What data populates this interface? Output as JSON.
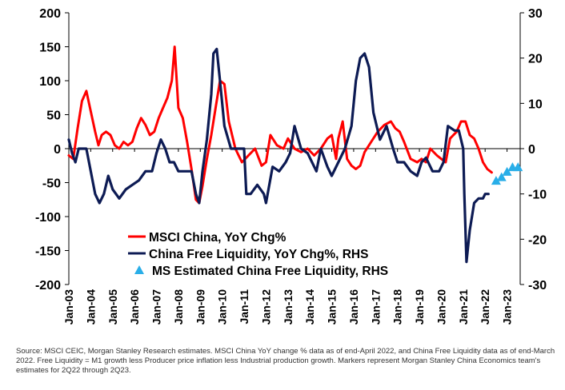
{
  "chart_data": {
    "type": "line",
    "title": "",
    "xlabel": "",
    "ylabel": "",
    "y_left": {
      "range": [
        -200,
        200
      ],
      "ticks": [
        "200",
        "150",
        "100",
        "50",
        "0",
        "-50",
        "-100",
        "-150",
        "-200"
      ]
    },
    "y_right": {
      "range": [
        -30,
        30
      ],
      "ticks": [
        "30",
        "20",
        "10",
        "0",
        "-10",
        "-20",
        "-30"
      ]
    },
    "x_range": [
      2003.0,
      2023.6
    ],
    "x_ticks": [
      "Jan-03",
      "Jan-04",
      "Jan-05",
      "Jan-06",
      "Jan-07",
      "Jan-08",
      "Jan-09",
      "Jan-10",
      "Jan-11",
      "Jan-12",
      "Jan-13",
      "Jan-14",
      "Jan-15",
      "Jan-16",
      "Jan-17",
      "Jan-18",
      "Jan-19",
      "Jan-20",
      "Jan-21",
      "Jan-22",
      "Jan-23"
    ],
    "x_tick_years": [
      2003,
      2004,
      2005,
      2006,
      2007,
      2008,
      2009,
      2010,
      2011,
      2012,
      2013,
      2014,
      2015,
      2016,
      2017,
      2018,
      2019,
      2020,
      2021,
      2022,
      2023
    ],
    "legend_position": "lower-center",
    "series": [
      {
        "name": "MSCI China, YoY Chg%",
        "axis": "left",
        "color": "#ff0000",
        "style": "line",
        "x": [
          2003.0,
          2003.2,
          2003.4,
          2003.6,
          2003.8,
          2004.0,
          2004.2,
          2004.35,
          2004.5,
          2004.7,
          2004.9,
          2005.1,
          2005.3,
          2005.5,
          2005.7,
          2005.9,
          2006.1,
          2006.3,
          2006.5,
          2006.7,
          2006.9,
          2007.1,
          2007.3,
          2007.5,
          2007.7,
          2007.83,
          2008.0,
          2008.2,
          2008.4,
          2008.6,
          2008.8,
          2008.95,
          2009.1,
          2009.3,
          2009.5,
          2009.7,
          2009.9,
          2010.1,
          2010.3,
          2010.6,
          2010.9,
          2011.2,
          2011.5,
          2011.8,
          2012.0,
          2012.2,
          2012.5,
          2012.8,
          2013.0,
          2013.3,
          2013.6,
          2013.9,
          2014.2,
          2014.5,
          2014.8,
          2015.0,
          2015.2,
          2015.3,
          2015.5,
          2015.7,
          2015.9,
          2016.1,
          2016.3,
          2016.5,
          2016.8,
          2017.1,
          2017.4,
          2017.7,
          2017.9,
          2018.1,
          2018.3,
          2018.6,
          2018.9,
          2019.1,
          2019.3,
          2019.5,
          2019.8,
          2020.0,
          2020.2,
          2020.4,
          2020.7,
          2020.9,
          2021.1,
          2021.3,
          2021.5,
          2021.7,
          2021.9,
          2022.1,
          2022.3
        ],
        "values": [
          -10,
          -15,
          30,
          70,
          85,
          55,
          25,
          5,
          20,
          25,
          20,
          5,
          0,
          10,
          5,
          10,
          30,
          45,
          35,
          20,
          25,
          45,
          60,
          75,
          100,
          150,
          60,
          45,
          10,
          -30,
          -75,
          -80,
          -55,
          -15,
          20,
          60,
          100,
          95,
          40,
          0,
          -20,
          -10,
          0,
          -25,
          -20,
          20,
          5,
          0,
          15,
          0,
          -5,
          0,
          -10,
          0,
          15,
          20,
          -15,
          15,
          40,
          -15,
          -25,
          -30,
          -25,
          -5,
          10,
          25,
          35,
          40,
          30,
          25,
          10,
          -15,
          -20,
          -15,
          -20,
          0,
          -10,
          -15,
          -20,
          15,
          25,
          40,
          40,
          20,
          15,
          0,
          -20,
          -30,
          -35
        ]
      },
      {
        "name": "China Free Liquidity, YoY Chg%, RHS",
        "axis": "right",
        "color": "#0d1b54",
        "style": "line",
        "x": [
          2003.0,
          2003.15,
          2003.3,
          2003.45,
          2003.6,
          2003.8,
          2004.0,
          2004.2,
          2004.4,
          2004.6,
          2004.8,
          2005.0,
          2005.3,
          2005.6,
          2005.9,
          2006.2,
          2006.5,
          2006.8,
          2007.0,
          2007.2,
          2007.4,
          2007.6,
          2007.8,
          2008.0,
          2008.3,
          2008.6,
          2008.8,
          2008.95,
          2009.1,
          2009.3,
          2009.5,
          2009.6,
          2009.75,
          2009.9,
          2010.1,
          2010.4,
          2010.7,
          2011.0,
          2011.1,
          2011.3,
          2011.6,
          2011.9,
          2012.0,
          2012.3,
          2012.6,
          2012.9,
          2013.1,
          2013.3,
          2013.6,
          2013.9,
          2014.1,
          2014.3,
          2014.5,
          2014.8,
          2015.0,
          2015.3,
          2015.6,
          2015.9,
          2016.1,
          2016.3,
          2016.5,
          2016.7,
          2016.9,
          2017.2,
          2017.5,
          2017.8,
          2018.0,
          2018.3,
          2018.6,
          2018.9,
          2019.1,
          2019.3,
          2019.6,
          2019.9,
          2020.1,
          2020.3,
          2020.6,
          2020.8,
          2021.0,
          2021.05,
          2021.15,
          2021.3,
          2021.5,
          2021.7,
          2021.9,
          2022.0,
          2022.15
        ],
        "values": [
          2,
          -1,
          -3,
          0,
          0,
          0,
          -5,
          -10,
          -12,
          -10,
          -6,
          -9,
          -11,
          -9,
          -8,
          -7,
          -5,
          -5,
          -1,
          2,
          0,
          -3,
          -3,
          -5,
          -5,
          -5,
          -10,
          -12,
          -5,
          2,
          12,
          21,
          22,
          15,
          5,
          0,
          0,
          0,
          -10,
          -10,
          -8,
          -10,
          -12,
          -4,
          -5,
          -3,
          -1,
          5,
          0,
          -1,
          -3,
          -5,
          0,
          -4,
          -6,
          -3,
          0,
          5,
          15,
          20,
          21,
          18,
          8,
          2,
          5,
          0,
          -3,
          -3,
          -5,
          -6,
          -3,
          -2,
          -5,
          -5,
          -3,
          5,
          4,
          4,
          0,
          -10,
          -25,
          -18,
          -12,
          -11,
          -11,
          -10,
          -10
        ]
      },
      {
        "name": "MS Estimated China Free Liquidity, RHS",
        "axis": "right",
        "color": "#29aee8",
        "style": "triangle-markers",
        "x": [
          2022.5,
          2022.75,
          2023.0,
          2023.25,
          2023.5
        ],
        "values": [
          -7,
          -6.2,
          -5,
          -4,
          -4
        ]
      }
    ],
    "note": "Source: MSCI CEIC, Morgan Stanley Research estimates. MSCI China YoY change % data as of end-April 2022, and China Free Liquidity data as of end-March 2022. Free Liquidity = M1 growth less Producer price inflation less Industrial production growth. Markers represent Morgan Stanley China Economics team's estimates for 2Q22 through 2Q23."
  }
}
